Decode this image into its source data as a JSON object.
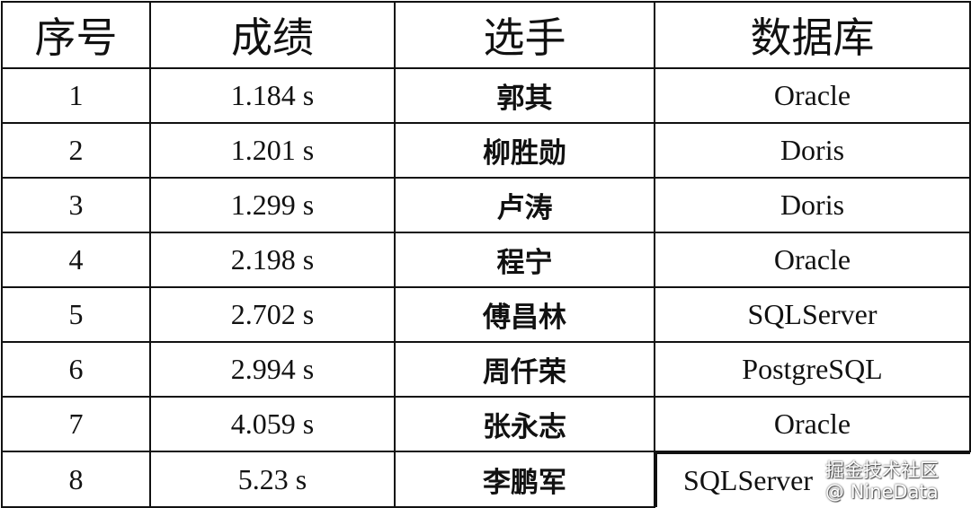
{
  "headers": [
    "序号",
    "成绩",
    "选手",
    "数据库"
  ],
  "rows": [
    {
      "rank": "1",
      "time": "1.184 s",
      "player": "郭其",
      "database": "Oracle"
    },
    {
      "rank": "2",
      "time": "1.201 s",
      "player": "柳胜勋",
      "database": "Doris"
    },
    {
      "rank": "3",
      "time": "1.299 s",
      "player": "卢涛",
      "database": "Doris"
    },
    {
      "rank": "4",
      "time": "2.198 s",
      "player": "程宁",
      "database": "Oracle"
    },
    {
      "rank": "5",
      "time": "2.702 s",
      "player": "傅昌林",
      "database": "SQLServer"
    },
    {
      "rank": "6",
      "time": "2.994 s",
      "player": "周仟荣",
      "database": "PostgreSQL"
    },
    {
      "rank": "7",
      "time": "4.059 s",
      "player": "张永志",
      "database": "Oracle"
    },
    {
      "rank": "8",
      "time": "5.23 s",
      "player": "李鹏军",
      "database": "SQLServer"
    }
  ],
  "watermark": "掘金技术社区 @ NineData"
}
